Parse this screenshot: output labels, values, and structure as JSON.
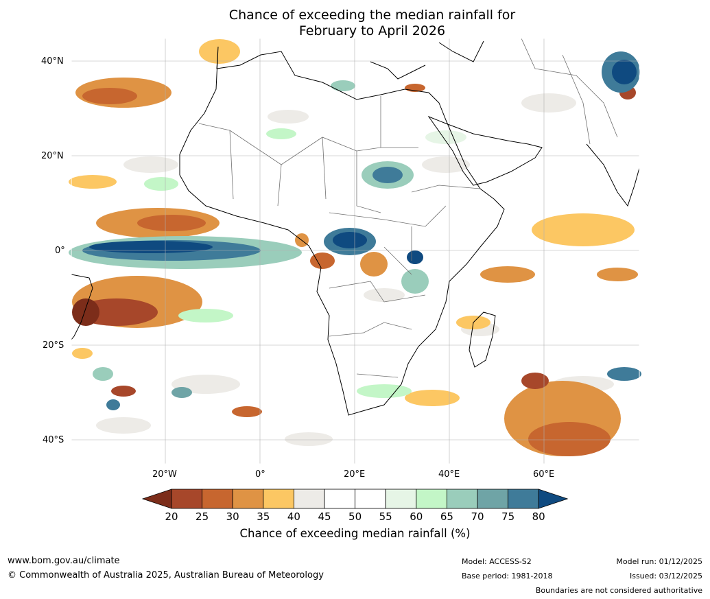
{
  "title_line1": "Chance of exceeding the median rainfall for",
  "title_line2": "February to April 2026",
  "lat_labels": [
    "40°N",
    "20°N",
    "0°",
    "20°S",
    "40°S"
  ],
  "lon_labels": [
    "20°W",
    "0°",
    "20°E",
    "40°E",
    "60°E"
  ],
  "colorbar": {
    "ticks": [
      "20",
      "25",
      "30",
      "35",
      "40",
      "45",
      "50",
      "55",
      "60",
      "65",
      "70",
      "75",
      "80"
    ],
    "colors": [
      "#7c2d1a",
      "#a7472a",
      "#c7662f",
      "#df9344",
      "#fcc763",
      "#edebe7",
      "#ffffff",
      "#ffffff",
      "#e6f5e6",
      "#c3f6c7",
      "#9acdbb",
      "#6fa4a6",
      "#3f7b99",
      "#0f4a80"
    ],
    "label": "Chance of exceeding median rainfall (%)"
  },
  "footer": {
    "website": "www.bom.gov.au/climate",
    "copyright": "© Commonwealth of Australia 2025, Australian Bureau of Meteorology",
    "model": "Model: ACCESS-S2",
    "base_period": "Base period: 1981-2018",
    "model_run": "Model run: 01/12/2025",
    "issued": "Issued: 03/12/2025",
    "disclaimer": "Boundaries are not considered authoritative"
  }
}
